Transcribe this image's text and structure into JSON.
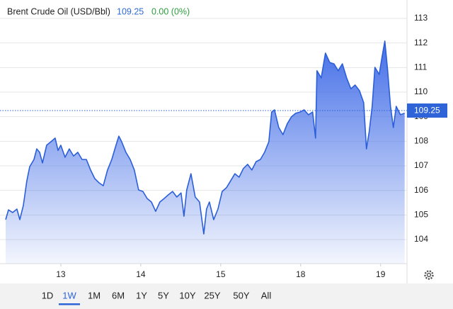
{
  "chart_data": {
    "type": "area",
    "title": "Brent Crude Oil (USD/Bbl)",
    "last_price": {
      "value": 109.25,
      "label": "109.25"
    },
    "change": "0.00 (0%)",
    "color": "#2b5fd9",
    "grid": true,
    "xlim": [
      -0.69,
      4.33
    ],
    "xticks": [
      {
        "value": 0,
        "label": "13"
      },
      {
        "value": 1,
        "label": "14"
      },
      {
        "value": 2,
        "label": "15"
      },
      {
        "value": 3,
        "label": "18"
      },
      {
        "value": 4,
        "label": "19"
      }
    ],
    "ylim": [
      103.02,
      113.75
    ],
    "yticks": [
      104,
      105,
      106,
      107,
      108,
      109,
      110,
      111,
      112,
      113
    ],
    "x": [
      -0.69,
      -0.655,
      -0.602,
      -0.549,
      -0.513,
      -0.469,
      -0.425,
      -0.389,
      -0.336,
      -0.301,
      -0.265,
      -0.23,
      -0.177,
      -0.124,
      -0.071,
      -0.035,
      0,
      0.053,
      0.106,
      0.159,
      0.212,
      0.265,
      0.319,
      0.372,
      0.425,
      0.478,
      0.531,
      0.584,
      0.637,
      0.69,
      0.726,
      0.761,
      0.814,
      0.867,
      0.92,
      0.973,
      1.027,
      1.08,
      1.133,
      1.186,
      1.239,
      1.292,
      1.345,
      1.398,
      1.451,
      1.504,
      1.54,
      1.575,
      1.628,
      1.681,
      1.735,
      1.788,
      1.823,
      1.858,
      1.912,
      1.965,
      2.018,
      2.071,
      2.124,
      2.177,
      2.23,
      2.283,
      2.336,
      2.389,
      2.442,
      2.496,
      2.549,
      2.602,
      2.637,
      2.673,
      2.726,
      2.779,
      2.832,
      2.885,
      2.938,
      2.991,
      3.044,
      3.097,
      3.15,
      3.186,
      3.204,
      3.257,
      3.31,
      3.363,
      3.416,
      3.469,
      3.522,
      3.575,
      3.628,
      3.681,
      3.735,
      3.788,
      3.823,
      3.858,
      3.894,
      3.929,
      3.982,
      4.018,
      4.053,
      4.088,
      4.124,
      4.159,
      4.195,
      4.248,
      4.301
    ],
    "values": [
      104.81,
      105.21,
      105.1,
      105.24,
      104.81,
      105.39,
      106.39,
      106.97,
      107.26,
      107.69,
      107.55,
      107.12,
      107.84,
      107.98,
      108.13,
      107.63,
      107.84,
      107.35,
      107.69,
      107.4,
      107.55,
      107.26,
      107.26,
      106.83,
      106.48,
      106.31,
      106.19,
      106.83,
      107.26,
      107.84,
      108.21,
      107.98,
      107.55,
      107.26,
      106.83,
      106.02,
      105.96,
      105.67,
      105.53,
      105.15,
      105.53,
      105.67,
      105.82,
      105.96,
      105.73,
      105.9,
      104.95,
      106.02,
      106.68,
      105.73,
      105.53,
      104.23,
      105.24,
      105.53,
      104.81,
      105.24,
      105.96,
      106.11,
      106.39,
      106.68,
      106.54,
      106.89,
      107.06,
      106.83,
      107.17,
      107.26,
      107.55,
      107.98,
      109.19,
      109.28,
      108.56,
      108.27,
      108.71,
      109.0,
      109.14,
      109.19,
      109.28,
      109.08,
      109.19,
      108.13,
      110.87,
      110.58,
      111.59,
      111.21,
      111.15,
      110.87,
      111.15,
      110.58,
      110.14,
      110.29,
      110.06,
      109.57,
      107.69,
      108.41,
      109.42,
      111.01,
      110.72,
      111.44,
      112.08,
      110.87,
      109.42,
      108.56,
      109.42,
      109.08,
      109.14
    ],
    "ranges": [
      "1D",
      "1W",
      "1M",
      "6M",
      "1Y",
      "5Y",
      "10Y",
      "25Y",
      "50Y",
      "All"
    ],
    "selected_range": "1W"
  }
}
